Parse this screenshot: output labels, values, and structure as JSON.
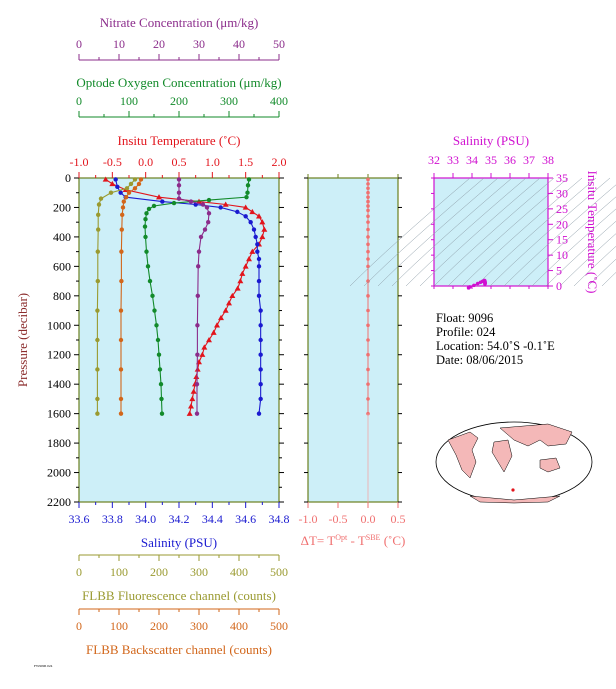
{
  "colors": {
    "nitrate": "#8b2c8b",
    "oxygen": "#128a2a",
    "temperature": "#e2141c",
    "salinity": "#1a1ad0",
    "fluorescence": "#9a9a30",
    "backscatter": "#d2661a",
    "delta_t": "#f07070",
    "ts_axis": "#d010d0",
    "panel_bg": "#cdeff8",
    "frame": "#6b7f1e"
  },
  "info": {
    "float": "Float:  9096",
    "profile": "Profile:  024",
    "location": "Location:  54.0˚S  -0.1˚E",
    "date": "Date:  08/06/2015"
  },
  "footer_text": "FW9096 024",
  "chart_data": [
    {
      "type": "line",
      "title": "",
      "y_axis": {
        "label": "Pressure (decibar)",
        "range": [
          2200,
          0
        ],
        "ticks": [
          0,
          200,
          400,
          600,
          800,
          1000,
          1200,
          1400,
          1600,
          1800,
          2000,
          2200
        ]
      },
      "axes": {
        "nitrate": {
          "label": "Nitrate Concentration (μm/kg)",
          "range": [
            0,
            50
          ],
          "ticks": [
            "0",
            "10",
            "20",
            "30",
            "40",
            "50"
          ]
        },
        "oxygen": {
          "label": "Optode Oxygen Concentration (μm/kg)",
          "range": [
            0,
            400
          ],
          "ticks": [
            "0",
            "100",
            "200",
            "300",
            "400"
          ]
        },
        "temperature": {
          "label": "Insitu Temperature (˚C)",
          "range": [
            -1.0,
            2.0
          ],
          "ticks": [
            "-1.0",
            "-0.5",
            "0.0",
            "0.5",
            "1.0",
            "1.5",
            "2.0"
          ]
        },
        "salinity": {
          "label": "Salinity (PSU)",
          "range": [
            33.6,
            34.8
          ],
          "ticks": [
            "33.6",
            "33.8",
            "34.0",
            "34.2",
            "34.4",
            "34.6",
            "34.8"
          ]
        },
        "fluorescence": {
          "label": "FLBB Fluorescence channel (counts)",
          "range": [
            0,
            500
          ],
          "ticks": [
            "0",
            "100",
            "200",
            "300",
            "400",
            "500"
          ]
        },
        "backscatter": {
          "label": "FLBB Backscatter channel (counts)",
          "range": [
            0,
            500
          ],
          "ticks": [
            "0",
            "100",
            "200",
            "300",
            "400",
            "500"
          ]
        }
      },
      "series": [
        {
          "name": "Insitu Temperature",
          "axis": "temperature",
          "marker": "triangle",
          "points": [
            [
              -0.6,
              10
            ],
            [
              -0.5,
              40
            ],
            [
              -0.3,
              80
            ],
            [
              0.2,
              130
            ],
            [
              0.8,
              160
            ],
            [
              1.2,
              180
            ],
            [
              1.5,
              200
            ],
            [
              1.6,
              230
            ],
            [
              1.7,
              260
            ],
            [
              1.75,
              300
            ],
            [
              1.78,
              350
            ],
            [
              1.75,
              400
            ],
            [
              1.7,
              450
            ],
            [
              1.6,
              500
            ],
            [
              1.55,
              550
            ],
            [
              1.5,
              600
            ],
            [
              1.45,
              650
            ],
            [
              1.42,
              700
            ],
            [
              1.38,
              750
            ],
            [
              1.3,
              800
            ],
            [
              1.25,
              850
            ],
            [
              1.2,
              900
            ],
            [
              1.13,
              950
            ],
            [
              1.07,
              1000
            ],
            [
              1.02,
              1050
            ],
            [
              0.95,
              1100
            ],
            [
              0.88,
              1150
            ],
            [
              0.85,
              1200
            ],
            [
              0.8,
              1250
            ],
            [
              0.78,
              1300
            ],
            [
              0.76,
              1350
            ],
            [
              0.74,
              1400
            ],
            [
              0.72,
              1450
            ],
            [
              0.7,
              1500
            ],
            [
              0.68,
              1550
            ],
            [
              0.66,
              1600
            ]
          ]
        },
        {
          "name": "Salinity",
          "axis": "salinity",
          "marker": "circle",
          "points": [
            [
              33.82,
              10
            ],
            [
              33.83,
              60
            ],
            [
              33.85,
              100
            ],
            [
              33.88,
              130
            ],
            [
              34.1,
              160
            ],
            [
              34.3,
              180
            ],
            [
              34.45,
              200
            ],
            [
              34.55,
              230
            ],
            [
              34.6,
              260
            ],
            [
              34.63,
              300
            ],
            [
              34.65,
              350
            ],
            [
              34.66,
              400
            ],
            [
              34.67,
              450
            ],
            [
              34.67,
              500
            ],
            [
              34.68,
              550
            ],
            [
              34.68,
              600
            ],
            [
              34.68,
              700
            ],
            [
              34.68,
              800
            ],
            [
              34.69,
              900
            ],
            [
              34.69,
              1000
            ],
            [
              34.69,
              1100
            ],
            [
              34.69,
              1200
            ],
            [
              34.69,
              1300
            ],
            [
              34.69,
              1400
            ],
            [
              34.69,
              1500
            ],
            [
              34.68,
              1600
            ]
          ]
        },
        {
          "name": "Optode Oxygen Concentration",
          "axis": "oxygen",
          "marker": "circle",
          "points": [
            [
              340,
              10
            ],
            [
              338,
              50
            ],
            [
              337,
              100
            ],
            [
              335,
              130
            ],
            [
              260,
              150
            ],
            [
              190,
              170
            ],
            [
              150,
              190
            ],
            [
              140,
              210
            ],
            [
              135,
              240
            ],
            [
              133,
              280
            ],
            [
              132,
              330
            ],
            [
              133,
              400
            ],
            [
              135,
              500
            ],
            [
              138,
              600
            ],
            [
              142,
              700
            ],
            [
              147,
              800
            ],
            [
              151,
              900
            ],
            [
              155,
              1000
            ],
            [
              158,
              1100
            ],
            [
              160,
              1200
            ],
            [
              162,
              1300
            ],
            [
              164,
              1400
            ],
            [
              165,
              1500
            ],
            [
              166,
              1600
            ]
          ]
        },
        {
          "name": "Nitrate Concentration",
          "axis": "nitrate",
          "marker": "circle",
          "points": [
            [
              25,
              10
            ],
            [
              25,
              50
            ],
            [
              25,
              100
            ],
            [
              25,
              140
            ],
            [
              28,
              160
            ],
            [
              31,
              180
            ],
            [
              32,
              200
            ],
            [
              32.5,
              240
            ],
            [
              32.3,
              300
            ],
            [
              31.5,
              350
            ],
            [
              30.5,
              400
            ],
            [
              30,
              500
            ],
            [
              29.8,
              600
            ],
            [
              29.7,
              800
            ],
            [
              29.6,
              1000
            ],
            [
              29.6,
              1200
            ],
            [
              29.5,
              1400
            ],
            [
              29.5,
              1600
            ]
          ]
        },
        {
          "name": "FLBB Fluorescence channel",
          "axis": "fluorescence",
          "marker": "circle",
          "points": [
            [
              140,
              10
            ],
            [
              130,
              40
            ],
            [
              120,
              70
            ],
            [
              80,
              100
            ],
            [
              55,
              140
            ],
            [
              50,
              180
            ],
            [
              48,
              250
            ],
            [
              48,
              350
            ],
            [
              47,
              500
            ],
            [
              47,
              700
            ],
            [
              46,
              900
            ],
            [
              46,
              1100
            ],
            [
              46,
              1300
            ],
            [
              46,
              1500
            ],
            [
              46,
              1600
            ]
          ]
        },
        {
          "name": "FLBB Backscatter channel",
          "axis": "backscatter",
          "marker": "circle",
          "points": [
            [
              155,
              10
            ],
            [
              150,
              40
            ],
            [
              140,
              70
            ],
            [
              125,
              100
            ],
            [
              118,
              130
            ],
            [
              112,
              160
            ],
            [
              110,
              200
            ],
            [
              108,
              250
            ],
            [
              107,
              350
            ],
            [
              106,
              500
            ],
            [
              106,
              700
            ],
            [
              105,
              900
            ],
            [
              105,
              1100
            ],
            [
              105,
              1300
            ],
            [
              105,
              1500
            ],
            [
              105,
              1600
            ]
          ]
        }
      ]
    },
    {
      "type": "scatter",
      "title": "",
      "x_axis": {
        "label": "ΔT= T",
        "label_sup1": "Opt",
        "label_mid": " - T",
        "label_sup2": "SBE",
        "label_end": " (˚C)",
        "range": [
          -1.0,
          0.5
        ],
        "ticks": [
          "-1.0",
          "-0.5",
          "0.0",
          "0.5"
        ]
      },
      "y_axis": {
        "range": [
          2200,
          0
        ]
      },
      "series": [
        {
          "name": "",
          "points": [
            [
              0.0,
              10
            ],
            [
              0.0,
              40
            ],
            [
              0.0,
              70
            ],
            [
              0.0,
              100
            ],
            [
              0.0,
              130
            ],
            [
              0.0,
              160
            ],
            [
              0.0,
              190
            ],
            [
              0.0,
              220
            ],
            [
              0.0,
              260
            ],
            [
              0.0,
              300
            ],
            [
              0.0,
              350
            ],
            [
              0.0,
              400
            ],
            [
              0.0,
              450
            ],
            [
              0.0,
              500
            ],
            [
              0.0,
              550
            ],
            [
              0.0,
              600
            ],
            [
              0.0,
              700
            ],
            [
              0.0,
              800
            ],
            [
              0.0,
              900
            ],
            [
              0.0,
              1000
            ],
            [
              0.0,
              1100
            ],
            [
              0.0,
              1200
            ],
            [
              0.0,
              1300
            ],
            [
              0.0,
              1400
            ],
            [
              0.0,
              1500
            ],
            [
              0.0,
              1600
            ]
          ]
        }
      ]
    },
    {
      "type": "scatter",
      "title": "",
      "x_axis": {
        "label": "Salinity (PSU)",
        "range": [
          32,
          38
        ],
        "ticks": [
          "32",
          "33",
          "34",
          "35",
          "36",
          "37",
          "38"
        ]
      },
      "y_axis": {
        "label": "Insitu Temperature (˚C)",
        "range": [
          0,
          35
        ],
        "ticks": [
          "0",
          "5",
          "10",
          "15",
          "20",
          "25",
          "30",
          "35"
        ]
      },
      "series": [
        {
          "name": "",
          "points": [
            [
              33.82,
              -0.6
            ],
            [
              33.88,
              -0.3
            ],
            [
              34.1,
              0.2
            ],
            [
              34.3,
              0.8
            ],
            [
              34.45,
              1.2
            ],
            [
              34.55,
              1.5
            ],
            [
              34.6,
              1.6
            ],
            [
              34.65,
              1.75
            ],
            [
              34.66,
              1.78
            ],
            [
              34.67,
              1.7
            ],
            [
              34.68,
              1.5
            ],
            [
              34.68,
              1.3
            ],
            [
              34.69,
              1.1
            ],
            [
              34.69,
              0.9
            ],
            [
              34.69,
              0.8
            ],
            [
              34.68,
              0.66
            ]
          ]
        }
      ]
    }
  ]
}
